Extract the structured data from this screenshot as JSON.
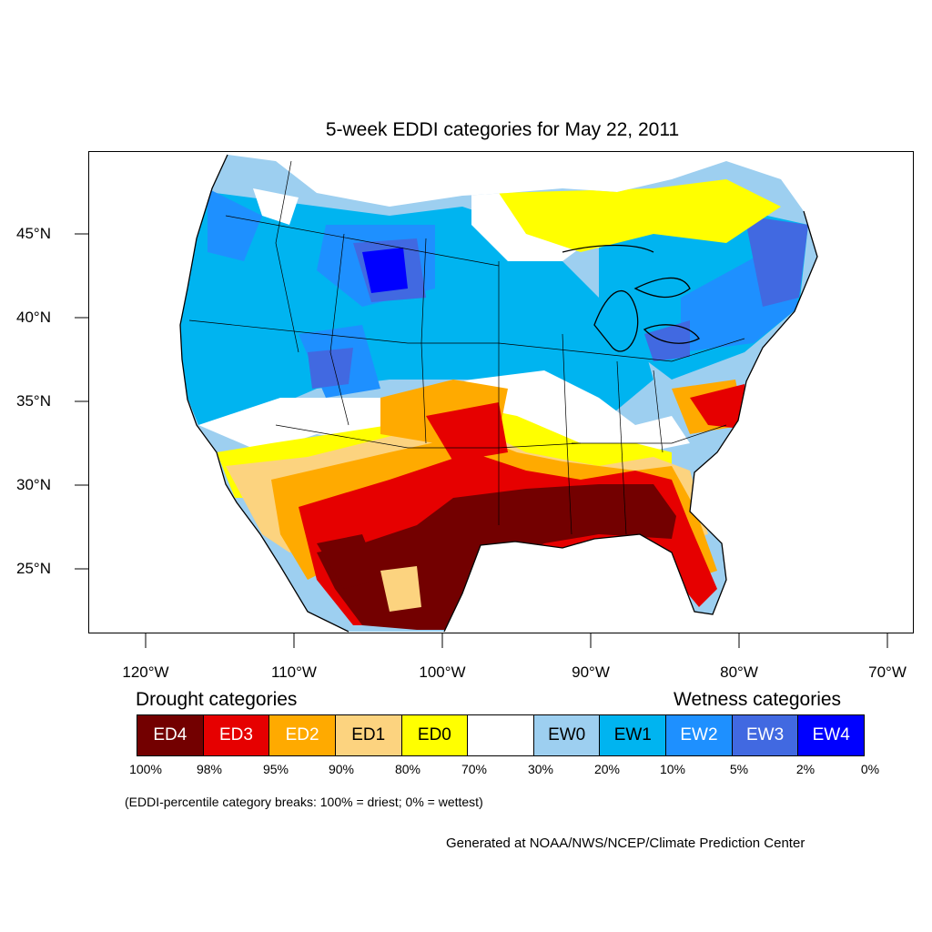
{
  "title": "5-week EDDI categories for May 22, 2011",
  "lat_labels": [
    "45°N",
    "40°N",
    "35°N",
    "30°N",
    "25°N"
  ],
  "lon_labels": [
    "120°W",
    "110°W",
    "100°W",
    "90°W",
    "80°W",
    "70°W"
  ],
  "legend": {
    "drought_title": "Drought categories",
    "wetness_title": "Wetness categories",
    "categories": [
      {
        "label": "ED4",
        "color": "#730000",
        "text_color": "#ffffff"
      },
      {
        "label": "ED3",
        "color": "#e60000",
        "text_color": "#ffffff"
      },
      {
        "label": "ED2",
        "color": "#ffaa00",
        "text_color": "#ffffff"
      },
      {
        "label": "ED1",
        "color": "#fcd37f",
        "text_color": "#000000"
      },
      {
        "label": "ED0",
        "color": "#ffff00",
        "text_color": "#000000"
      },
      {
        "label": "",
        "color": "#ffffff",
        "text_color": "#000000"
      },
      {
        "label": "EW0",
        "color": "#9dcff0",
        "text_color": "#000000"
      },
      {
        "label": "EW1",
        "color": "#00b4f0",
        "text_color": "#000000"
      },
      {
        "label": "EW2",
        "color": "#1e90ff",
        "text_color": "#ffffff"
      },
      {
        "label": "EW3",
        "color": "#4169e1",
        "text_color": "#ffffff"
      },
      {
        "label": "EW4",
        "color": "#0000ff",
        "text_color": "#ffffff"
      }
    ],
    "breaks": [
      "100%",
      "98%",
      "95%",
      "90%",
      "80%",
      "70%",
      "30%",
      "20%",
      "10%",
      "5%",
      "2%",
      "0%"
    ]
  },
  "note": "(EDDI-percentile category breaks: 100% = driest; 0% = wettest)",
  "credit": "Generated at NOAA/NWS/NCEP/Climate Prediction Center"
}
